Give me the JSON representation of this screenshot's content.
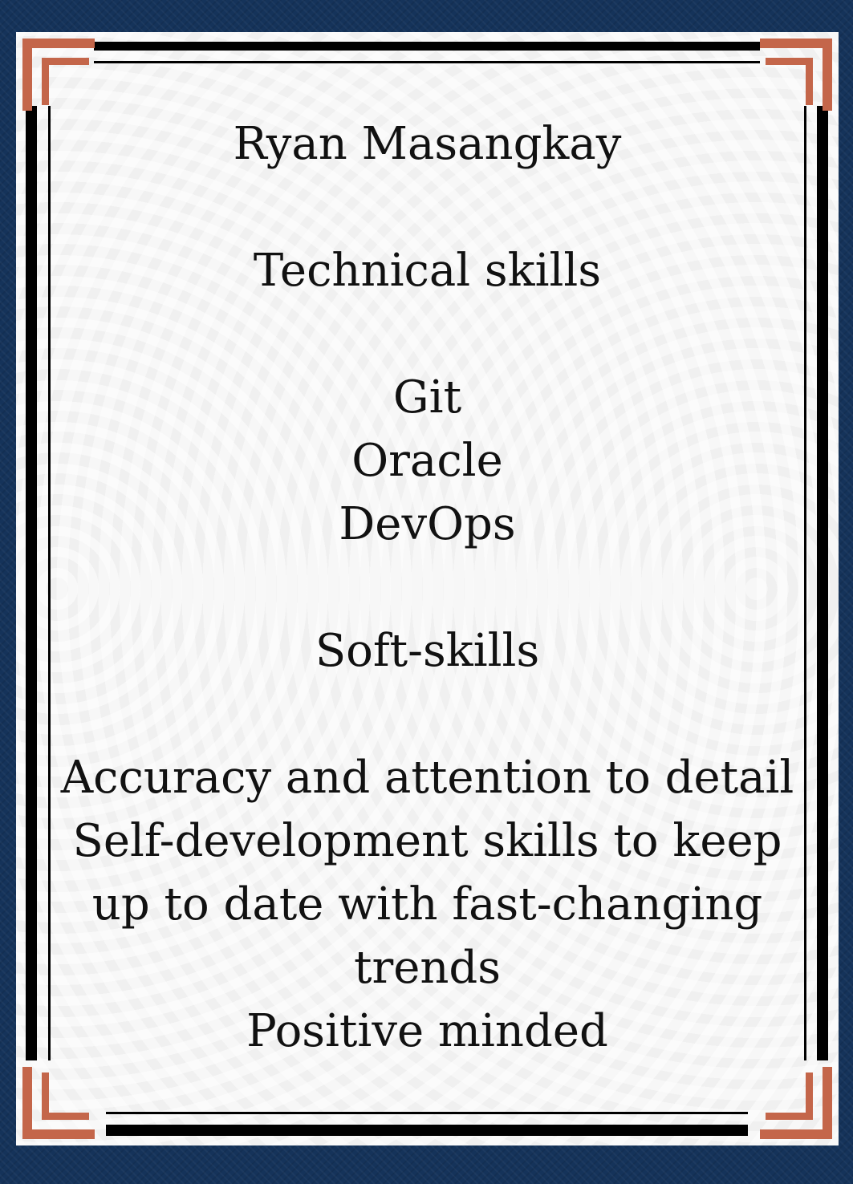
{
  "name": "Ryan Masangkay",
  "technical": {
    "heading": "Technical skills",
    "items": [
      "Git",
      "Oracle",
      "DevOps"
    ]
  },
  "soft": {
    "heading": "Soft-skills",
    "items": [
      "Accuracy and attention to detail",
      "Self-development skills to keep up to date with fast-changing trends",
      "Positive minded"
    ]
  },
  "colors": {
    "background": "#15335a",
    "frame": "#000000",
    "accent": "#c4664a",
    "paper": "#f7f7f7"
  }
}
